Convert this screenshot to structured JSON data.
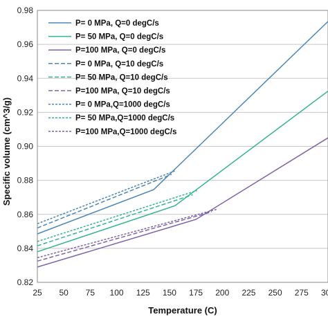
{
  "chart_data": {
    "type": "line",
    "title": "",
    "xlabel": "Temperature (C)",
    "ylabel": "Specific volume (cm^3/g)",
    "xlim": [
      25,
      300
    ],
    "ylim": [
      0.82,
      0.98
    ],
    "x_ticks": [
      "25",
      "50",
      "75",
      "100",
      "125",
      "150",
      "175",
      "200",
      "225",
      "250",
      "275",
      "300"
    ],
    "y_ticks": [
      "0.82",
      "0.84",
      "0.86",
      "0.88",
      "0.90",
      "0.92",
      "0.94",
      "0.96",
      "0.98"
    ],
    "grid": "horizontal",
    "legend_position": "top-left",
    "series": [
      {
        "name": "P=  0 MPa, Q=0 degC/s",
        "style": "solid",
        "color": "#4a86b8",
        "x": [
          25,
          135,
          300
        ],
        "y": [
          0.8485,
          0.8745,
          0.9735
        ]
      },
      {
        "name": "P= 50 MPa, Q=0 degC/s",
        "style": "solid",
        "color": "#33b58a",
        "x": [
          25,
          155,
          300
        ],
        "y": [
          0.838,
          0.865,
          0.9325
        ]
      },
      {
        "name": "P=100 MPa, Q=0 degC/s",
        "style": "solid",
        "color": "#7e63a8",
        "x": [
          25,
          175,
          300
        ],
        "y": [
          0.829,
          0.857,
          0.905
        ]
      },
      {
        "name": "P=  0 MPa, Q=10 degC/s",
        "style": "dashed",
        "color": "#4a86b8",
        "x": [
          25,
          152
        ],
        "y": [
          0.852,
          0.8835
        ]
      },
      {
        "name": "P= 50 MPa, Q=10 degC/s",
        "style": "dashed",
        "color": "#33b58a",
        "x": [
          25,
          172
        ],
        "y": [
          0.8415,
          0.8715
        ]
      },
      {
        "name": "P=100 MPa, Q=10 degC/s",
        "style": "dashed",
        "color": "#7e63a8",
        "x": [
          25,
          190
        ],
        "y": [
          0.8325,
          0.8615
        ]
      },
      {
        "name": "P=  0 MPa,Q=1000 degC/s",
        "style": "dotted",
        "color": "#4a86b8",
        "x": [
          25,
          155
        ],
        "y": [
          0.8545,
          0.8855
        ]
      },
      {
        "name": "P= 50 MPa,Q=1000 degC/s",
        "style": "dotted",
        "color": "#33b58a",
        "x": [
          25,
          176
        ],
        "y": [
          0.844,
          0.874
        ]
      },
      {
        "name": "P=100 MPa,Q=1000 degC/s",
        "style": "dotted",
        "color": "#7e63a8",
        "x": [
          25,
          195
        ],
        "y": [
          0.8345,
          0.863
        ]
      }
    ]
  }
}
